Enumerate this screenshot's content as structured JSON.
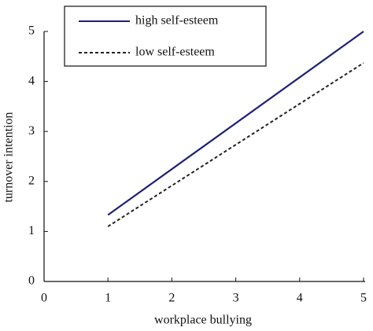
{
  "chart_data": {
    "type": "line",
    "x_label": "workplace bullying",
    "y_label": "turnover intention",
    "x": [
      1,
      5
    ],
    "series": [
      {
        "name": "high self-esteem",
        "color": "#1f1f7a",
        "dash": "solid",
        "values": [
          1.33,
          5.0
        ]
      },
      {
        "name": "low self-esteem",
        "color": "#222222",
        "dash": "dashed",
        "values": [
          1.1,
          4.37
        ]
      }
    ],
    "xlim": [
      0,
      5
    ],
    "xticks": [
      0,
      1,
      2,
      3,
      4,
      5
    ],
    "ylim": [
      0,
      5
    ],
    "yticks": [
      0,
      1,
      2,
      3,
      4,
      5
    ],
    "grid": false,
    "legend": "upper left"
  }
}
